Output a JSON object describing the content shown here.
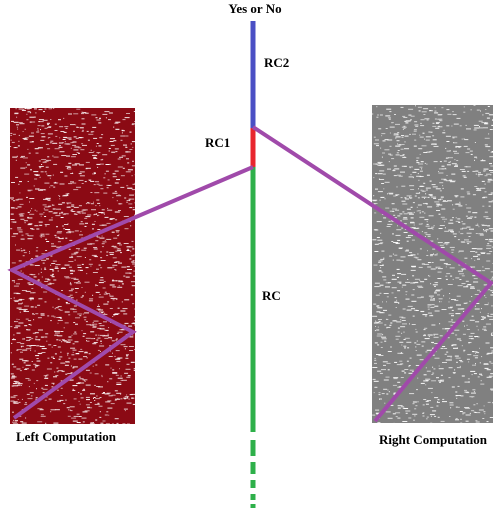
{
  "diagram": {
    "top_label": "Yes or No",
    "segments": {
      "rc2": {
        "label": "RC2",
        "color": "#4a4fc4"
      },
      "rc1": {
        "label": "RC1",
        "color": "#e8262e"
      },
      "rc": {
        "label": "RC",
        "color": "#2eb04a"
      }
    },
    "left_block": {
      "label": "Left Computation",
      "color": "#8b0a14",
      "noise_color": "#ffffff"
    },
    "right_block": {
      "label": "Right Computation",
      "color": "#808080",
      "noise_color": "#ffffff"
    },
    "path_color": "#a04aaa"
  }
}
